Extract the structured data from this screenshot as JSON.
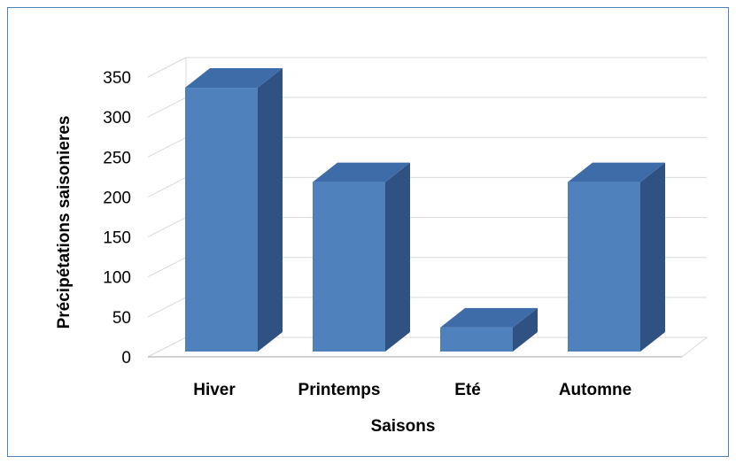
{
  "chart_data": {
    "type": "bar",
    "style": "3d-column",
    "title": "",
    "xlabel": "Saisons",
    "ylabel": "Précipétations saisonieres",
    "categories": [
      "Hiver",
      "Printemps",
      "Eté",
      "Automne"
    ],
    "values": [
      330,
      212,
      30,
      212
    ],
    "ylim": [
      0,
      350
    ],
    "yticks": [
      "0",
      "50",
      "100",
      "150",
      "200",
      "250",
      "300",
      "350"
    ],
    "grid": true,
    "legend": "none",
    "colors": {
      "bar_front": "#4f81bd",
      "bar_top": "#3d6ca8",
      "bar_side": "#2f5282",
      "border": "#4f81bd",
      "grid": "#d9d9d9"
    }
  }
}
